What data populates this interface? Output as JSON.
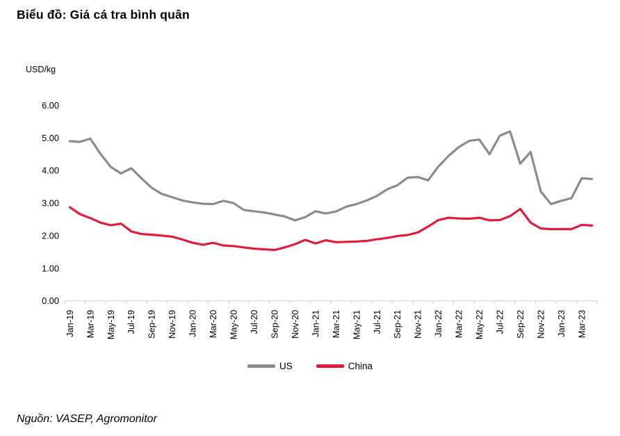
{
  "title": "Biểu đồ: Giá cá tra bình quân",
  "source": "Nguồn: VASEP, Agromonitor",
  "legend": [
    {
      "name": "US",
      "color": "#8b8b8b"
    },
    {
      "name": "China",
      "color": "#dc1e3c"
    }
  ],
  "chart_data": {
    "type": "line",
    "title": "Biểu đồ: Giá cá tra bình quân",
    "unit_label": "USD/kg",
    "ylabel": "USD/kg",
    "ylim": [
      0,
      6
    ],
    "y_ticks": [
      "0.00",
      "1.00",
      "2.00",
      "3.00",
      "4.00",
      "5.00",
      "6.00"
    ],
    "grid": false,
    "legend_position": "bottom",
    "axis_color": "#d6d6d6",
    "x": [
      "Jan-19",
      "Feb-19",
      "Mar-19",
      "Apr-19",
      "May-19",
      "Jun-19",
      "Jul-19",
      "Aug-19",
      "Sep-19",
      "Oct-19",
      "Nov-19",
      "Dec-19",
      "Jan-20",
      "Feb-20",
      "Mar-20",
      "Apr-20",
      "May-20",
      "Jun-20",
      "Jul-20",
      "Aug-20",
      "Sep-20",
      "Oct-20",
      "Nov-20",
      "Dec-20",
      "Jan-21",
      "Feb-21",
      "Mar-21",
      "Apr-21",
      "May-21",
      "Jun-21",
      "Jul-21",
      "Aug-21",
      "Sep-21",
      "Oct-21",
      "Nov-21",
      "Dec-21",
      "Jan-22",
      "Feb-22",
      "Mar-22",
      "Apr-22",
      "May-22",
      "Jun-22",
      "Jul-22",
      "Aug-22",
      "Sep-22",
      "Oct-22",
      "Nov-22",
      "Dec-22",
      "Jan-23",
      "Feb-23",
      "Mar-23",
      "Apr-23"
    ],
    "x_tick_labels": [
      "Jan-19",
      "Mar-19",
      "May-19",
      "Jul-19",
      "Sep-19",
      "Nov-19",
      "Jan-20",
      "Mar-20",
      "May-20",
      "Jul-20",
      "Sep-20",
      "Nov-20",
      "Jan-21",
      "Mar-21",
      "May-21",
      "Jul-21",
      "Sep-21",
      "Nov-21",
      "Jan-22",
      "Mar-22",
      "May-22",
      "Jul-22",
      "Sep-22",
      "Nov-22",
      "Jan-23",
      "Mar-23"
    ],
    "series": [
      {
        "name": "US",
        "color": "#8b8b8b",
        "values": [
          4.9,
          4.88,
          4.98,
          4.51,
          4.11,
          3.91,
          4.07,
          3.76,
          3.47,
          3.28,
          3.18,
          3.08,
          3.02,
          2.98,
          2.97,
          3.07,
          3.0,
          2.79,
          2.75,
          2.71,
          2.65,
          2.59,
          2.47,
          2.57,
          2.75,
          2.68,
          2.74,
          2.89,
          2.97,
          3.08,
          3.22,
          3.42,
          3.55,
          3.78,
          3.8,
          3.7,
          4.12,
          4.45,
          4.72,
          4.91,
          4.95,
          4.5,
          5.07,
          5.2,
          4.21,
          4.57,
          3.36,
          2.97,
          3.07,
          3.15,
          3.76,
          3.74
        ]
      },
      {
        "name": "China",
        "color": "#dc1e3c",
        "values": [
          2.87,
          2.66,
          2.54,
          2.4,
          2.32,
          2.37,
          2.13,
          2.05,
          2.03,
          2.0,
          1.97,
          1.88,
          1.78,
          1.72,
          1.78,
          1.7,
          1.68,
          1.64,
          1.6,
          1.58,
          1.56,
          1.64,
          1.74,
          1.87,
          1.76,
          1.86,
          1.8,
          1.81,
          1.82,
          1.84,
          1.89,
          1.93,
          1.99,
          2.02,
          2.1,
          2.28,
          2.48,
          2.55,
          2.53,
          2.52,
          2.55,
          2.47,
          2.48,
          2.6,
          2.82,
          2.4,
          2.22,
          2.2,
          2.2,
          2.2,
          2.33,
          2.31
        ]
      }
    ]
  }
}
